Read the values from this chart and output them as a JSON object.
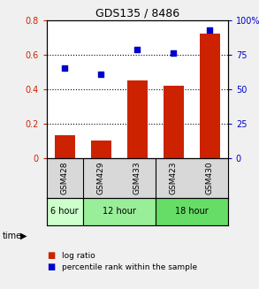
{
  "title": "GDS135 / 8486",
  "samples": [
    "GSM428",
    "GSM429",
    "GSM433",
    "GSM423",
    "GSM430"
  ],
  "log_ratio": [
    0.13,
    0.1,
    0.45,
    0.42,
    0.72
  ],
  "percentile_rank": [
    65,
    61,
    79,
    76,
    93
  ],
  "bar_color": "#cc2200",
  "dot_color": "#0000cc",
  "ylim_left": [
    0,
    0.8
  ],
  "ylim_right": [
    0,
    100
  ],
  "yticks_left": [
    0.0,
    0.2,
    0.4,
    0.6,
    0.8
  ],
  "ytick_labels_left": [
    "0",
    "0.2",
    "0.4",
    "0.6",
    "0.8"
  ],
  "yticks_right": [
    0,
    25,
    50,
    75,
    100
  ],
  "ytick_labels_right": [
    "0",
    "25",
    "50",
    "75",
    "100%"
  ],
  "time_groups": [
    {
      "label": "6 hour",
      "start": 0,
      "end": 1,
      "color": "#ccffcc"
    },
    {
      "label": "12 hour",
      "start": 1,
      "end": 3,
      "color": "#99ee99"
    },
    {
      "label": "18 hour",
      "start": 3,
      "end": 5,
      "color": "#66dd66"
    }
  ],
  "time_label": "time",
  "legend_bar_label": "log ratio",
  "legend_dot_label": "percentile rank within the sample",
  "background_color": "#f0f0f0",
  "plot_bg": "#ffffff",
  "sample_label_bg": "#d8d8d8"
}
